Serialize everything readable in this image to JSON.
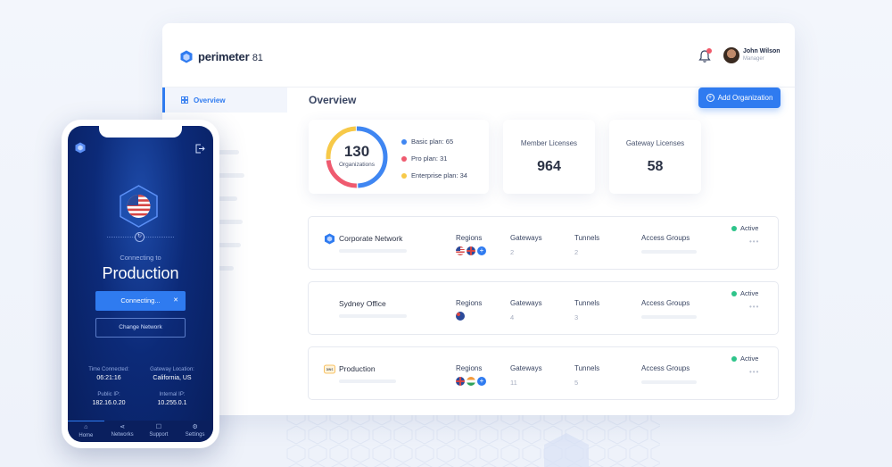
{
  "app": {
    "brand": "perimeter",
    "brand_suffix": "81"
  },
  "user": {
    "name": "John Wilson",
    "role": "Manager"
  },
  "sidebar": {
    "items": [
      {
        "label": "Overview",
        "icon": "grid-icon"
      }
    ]
  },
  "main": {
    "title": "Overview",
    "add_button": "Add Organization"
  },
  "summary": {
    "organizations": {
      "count": "130",
      "label": "Organizations"
    },
    "plans": [
      {
        "label": "Basic plan: 65",
        "color": "#3f86f2"
      },
      {
        "label": "Pro plan: 31",
        "color": "#ef5a6f"
      },
      {
        "label": "Enterprise plan: 34",
        "color": "#f7c948"
      }
    ],
    "member_licenses": {
      "title": "Member Licenses",
      "value": "964"
    },
    "gateway_licenses": {
      "title": "Gateway Licenses",
      "value": "58"
    }
  },
  "columns": {
    "regions": "Regions",
    "gateways": "Gateways",
    "tunnels": "Tunnels",
    "access_groups": "Access Groups"
  },
  "networks": [
    {
      "name": "Corporate Network",
      "gateways": "2",
      "tunnels": "2",
      "status": "Active",
      "flags": [
        "us",
        "uk",
        "plus"
      ]
    },
    {
      "name": "Sydney Office",
      "gateways": "4",
      "tunnels": "3",
      "status": "Active",
      "flags": [
        "au"
      ]
    },
    {
      "name": "Production",
      "gateways": "11",
      "tunnels": "5",
      "status": "Active",
      "flags": [
        "uk",
        "in",
        "plus"
      ]
    }
  ],
  "mobile": {
    "connecting_to": "Connecting to",
    "network": "Production",
    "connect_button": "Connecting...",
    "change_button": "Change Network",
    "time_connected_label": "Time Connected:",
    "time_connected": "06:21:16",
    "gateway_location_label": "Gateway Location:",
    "gateway_location": "California, US",
    "public_ip_label": "Public IP:",
    "public_ip": "182.16.0.20",
    "internal_ip_label": "Internal IP:",
    "internal_ip": "10.255.0.1",
    "tabs": [
      "Home",
      "Networks",
      "Support",
      "Settings"
    ]
  },
  "colors": {
    "accent": "#2f7bf0",
    "active_status": "#2ec48a"
  }
}
